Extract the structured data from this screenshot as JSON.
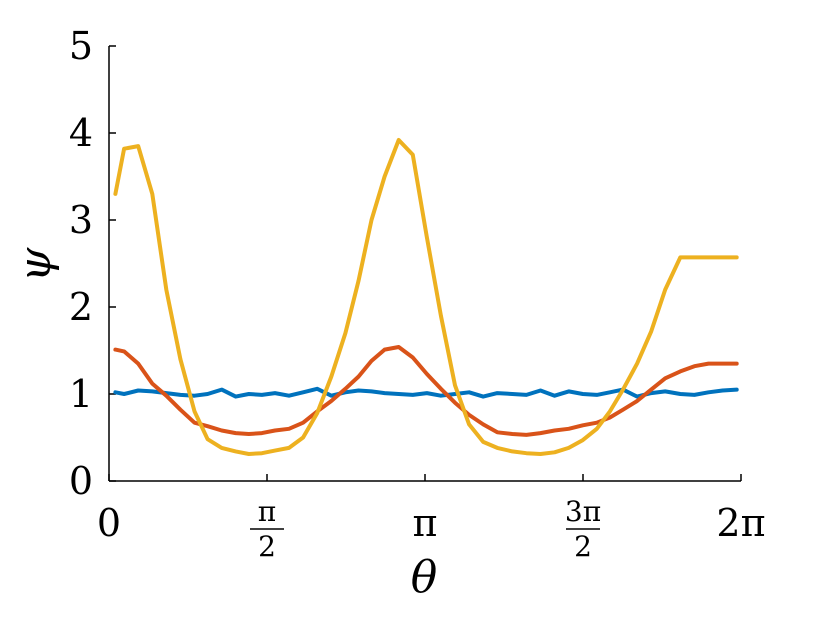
{
  "chart_data": {
    "type": "line",
    "title": "",
    "xlabel": "θ",
    "ylabel": "ψ",
    "xlim": [
      0,
      6.2832
    ],
    "ylim": [
      0,
      5
    ],
    "grid": false,
    "x_ticks": [
      {
        "value": 0,
        "num": "0",
        "den": ""
      },
      {
        "value": 1.5708,
        "num": "π",
        "den": "2"
      },
      {
        "value": 3.1416,
        "num": "π",
        "den": ""
      },
      {
        "value": 4.7124,
        "num": "3π",
        "den": "2"
      },
      {
        "value": 6.2832,
        "num": "2π",
        "den": ""
      }
    ],
    "y_ticks": [
      "0",
      "1",
      "2",
      "3",
      "4",
      "5"
    ],
    "x": [
      0.064,
      0.15,
      0.29,
      0.43,
      0.57,
      0.71,
      0.85,
      0.98,
      1.12,
      1.26,
      1.39,
      1.52,
      1.65,
      1.79,
      1.93,
      2.07,
      2.21,
      2.35,
      2.48,
      2.61,
      2.74,
      2.88,
      3.02,
      3.16,
      3.3,
      3.44,
      3.58,
      3.72,
      3.86,
      4.01,
      4.15,
      4.29,
      4.43,
      4.57,
      4.71,
      4.85,
      4.98,
      5.11,
      5.25,
      5.39,
      5.53,
      5.68,
      5.82,
      5.96,
      6.1,
      6.24
    ],
    "series": [
      {
        "color": "#0072BD",
        "values": [
          1.02,
          1.0,
          1.04,
          1.03,
          1.01,
          0.99,
          0.98,
          1.0,
          1.05,
          0.97,
          1.0,
          0.99,
          1.01,
          0.98,
          1.02,
          1.06,
          0.98,
          1.02,
          1.04,
          1.03,
          1.01,
          1.0,
          0.99,
          1.01,
          0.98,
          1.0,
          1.02,
          0.97,
          1.01,
          1.0,
          0.99,
          1.04,
          0.98,
          1.03,
          1.0,
          0.99,
          1.02,
          1.05,
          0.97,
          1.01,
          1.03,
          1.0,
          0.99,
          1.02,
          1.04,
          1.05
        ]
      },
      {
        "color": "#D95319",
        "values": [
          1.51,
          1.49,
          1.35,
          1.12,
          0.98,
          0.82,
          0.67,
          0.63,
          0.58,
          0.55,
          0.54,
          0.55,
          0.58,
          0.6,
          0.67,
          0.8,
          0.92,
          1.06,
          1.2,
          1.38,
          1.51,
          1.54,
          1.42,
          1.23,
          1.06,
          0.9,
          0.76,
          0.65,
          0.56,
          0.54,
          0.53,
          0.55,
          0.58,
          0.6,
          0.64,
          0.67,
          0.73,
          0.82,
          0.92,
          1.05,
          1.18,
          1.26,
          1.32,
          1.35,
          1.35,
          1.35
        ]
      },
      {
        "color": "#EDB120",
        "values": [
          3.3,
          3.82,
          3.85,
          3.3,
          2.2,
          1.4,
          0.8,
          0.48,
          0.38,
          0.34,
          0.31,
          0.32,
          0.35,
          0.38,
          0.5,
          0.78,
          1.2,
          1.7,
          2.3,
          3.0,
          3.5,
          3.92,
          3.75,
          2.8,
          1.9,
          1.1,
          0.65,
          0.45,
          0.38,
          0.34,
          0.32,
          0.31,
          0.33,
          0.38,
          0.47,
          0.6,
          0.8,
          1.05,
          1.35,
          1.72,
          2.2,
          2.57,
          2.57,
          2.57,
          2.57,
          2.57
        ]
      }
    ]
  }
}
